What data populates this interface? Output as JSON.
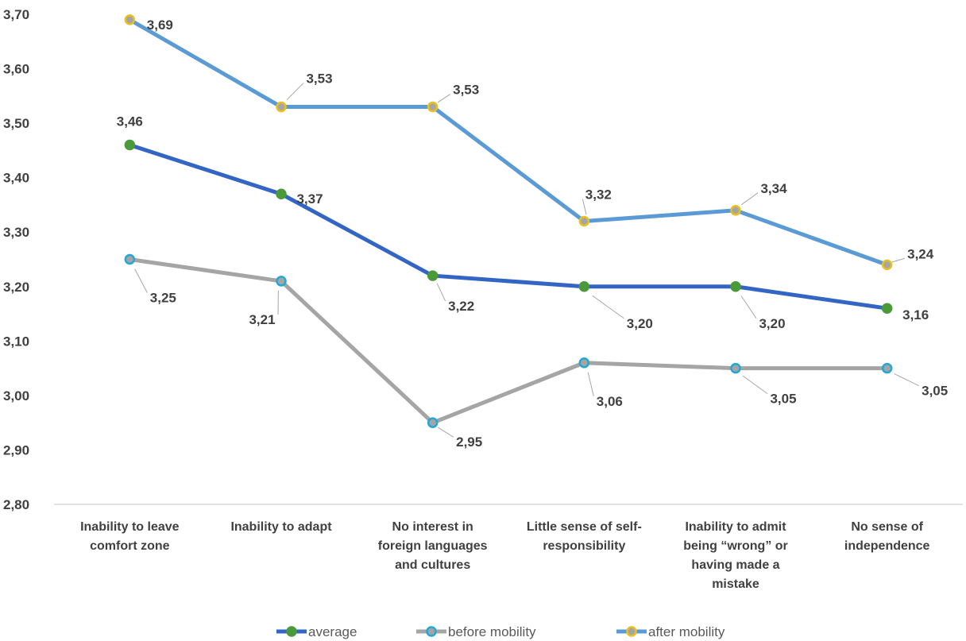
{
  "chart_data": {
    "type": "line",
    "categories": [
      [
        "Inability to leave",
        "comfort zone"
      ],
      [
        "Inability to adapt"
      ],
      [
        "No interest in",
        "foreign languages",
        "and cultures"
      ],
      [
        "Little sense of self-",
        "responsibility"
      ],
      [
        "Inability to admit",
        "being “wrong” or",
        "having made a",
        "mistake"
      ],
      [
        "No sense of",
        "independence"
      ]
    ],
    "ylim": [
      2.8,
      3.7
    ],
    "yticks": [
      "2,80",
      "2,90",
      "3,00",
      "3,10",
      "3,20",
      "3,30",
      "3,40",
      "3,50",
      "3,60",
      "3,70"
    ],
    "grid": false,
    "legend_position": "bottom",
    "series": [
      {
        "name": "average",
        "color": "#3366c4",
        "marker_fill": "#4a9a3a",
        "marker_edge": "#4a9a3a",
        "values": [
          3.46,
          3.37,
          3.22,
          3.2,
          3.2,
          3.16
        ],
        "labels": [
          "3,46",
          "3,37",
          "3,22",
          "3,20",
          "3,20",
          "3,16"
        ]
      },
      {
        "name": "before mobility",
        "color": "#a5a5a5",
        "marker_fill": "#a5a5a5",
        "marker_edge": "#22a7d6",
        "values": [
          3.25,
          3.21,
          2.95,
          3.06,
          3.05,
          3.05
        ],
        "labels": [
          "3,25",
          "3,21",
          "2,95",
          "3,06",
          "3,05",
          "3,05"
        ]
      },
      {
        "name": "after mobility",
        "color": "#5b9bd5",
        "marker_fill": "#a5a5a5",
        "marker_edge": "#e8c020",
        "values": [
          3.69,
          3.53,
          3.53,
          3.32,
          3.34,
          3.24
        ],
        "labels": [
          "3,69",
          "3,53",
          "3,53",
          "3,32",
          "3,34",
          "3,24"
        ]
      }
    ]
  }
}
